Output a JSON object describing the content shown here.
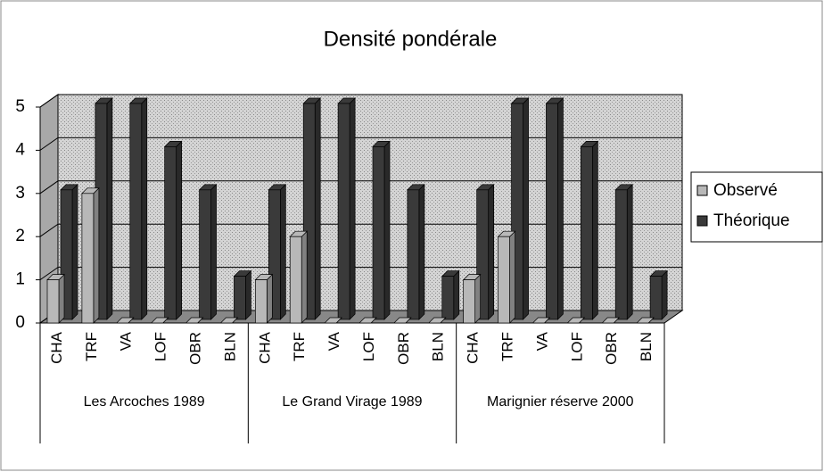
{
  "chart_data": {
    "type": "bar3d",
    "title": "Densité pondérale",
    "categories": [
      "CHA",
      "TRF",
      "VA",
      "LOF",
      "OBR",
      "BLN",
      "CHA",
      "TRF",
      "VA",
      "LOF",
      "OBR",
      "BLN",
      "CHA",
      "TRF",
      "VA",
      "LOF",
      "OBR",
      "BLN"
    ],
    "groups": [
      "Les Arcoches 1989",
      "Le Grand Virage 1989",
      "Marignier réserve 2000"
    ],
    "series": [
      {
        "name": "Observé",
        "color": "#b8b8b8",
        "values": [
          1,
          3,
          0,
          0,
          0,
          0,
          1,
          2,
          0,
          0,
          0,
          0,
          1,
          2,
          0,
          0,
          0,
          0
        ]
      },
      {
        "name": "Théorique",
        "color": "#3a3a3a",
        "values": [
          3,
          5,
          5,
          4,
          3,
          1,
          3,
          5,
          5,
          4,
          3,
          1,
          3,
          5,
          5,
          4,
          3,
          1
        ]
      }
    ],
    "ylim": [
      0,
      5
    ],
    "yticks": [
      0,
      1,
      2,
      3,
      4,
      5
    ],
    "grid": true,
    "legend": "right"
  }
}
